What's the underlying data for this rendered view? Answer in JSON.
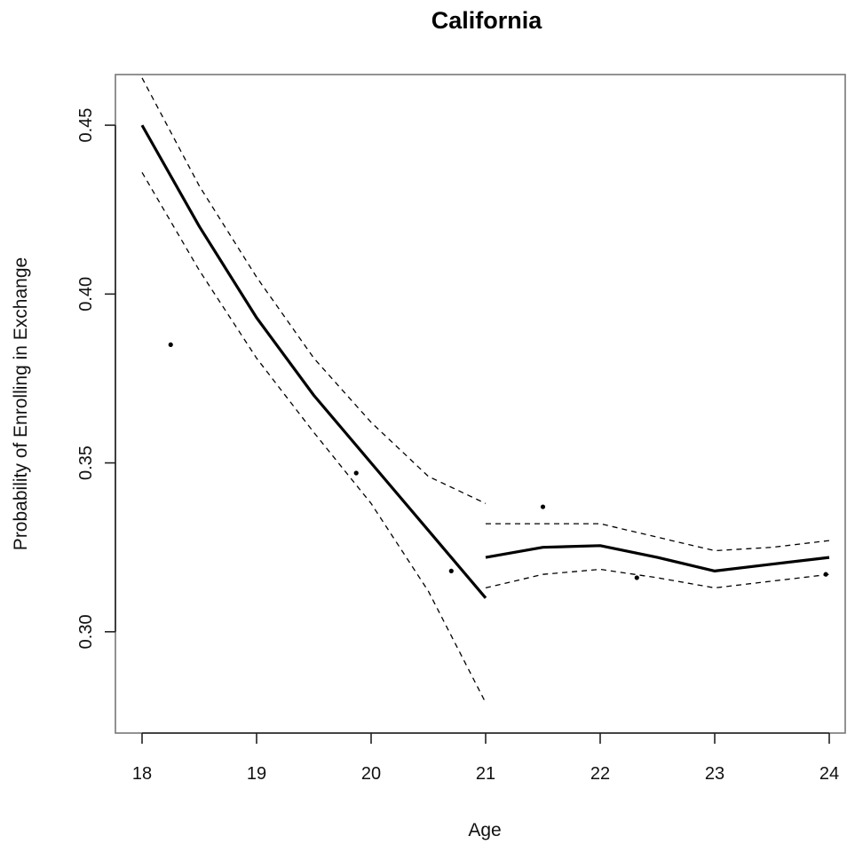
{
  "chart_data": {
    "type": "line",
    "title": "California",
    "xlabel": "Age",
    "ylabel": "Probability of Enrolling in Exchange",
    "xlim": [
      18,
      24
    ],
    "ylim": [
      0.27,
      0.465
    ],
    "x_ticks": [
      18,
      19,
      20,
      21,
      22,
      23,
      24
    ],
    "x_tick_labels": [
      "18",
      "19",
      "20",
      "21",
      "22",
      "23",
      "24"
    ],
    "y_ticks": [
      0.3,
      0.35,
      0.4,
      0.45
    ],
    "y_tick_labels": [
      "0.30",
      "0.35",
      "0.40",
      "0.45"
    ],
    "grid": false,
    "legend": "none",
    "series": [
      {
        "role": "fit",
        "segments": [
          {
            "x": [
              18,
              18.5,
              19,
              19.5,
              20,
              20.5,
              21
            ],
            "y": [
              0.45,
              0.42,
              0.393,
              0.37,
              0.35,
              0.33,
              0.31
            ]
          },
          {
            "x": [
              21,
              21.5,
              22,
              22.5,
              23,
              23.5,
              24
            ],
            "y": [
              0.322,
              0.325,
              0.3255,
              0.322,
              0.318,
              0.32,
              0.322
            ]
          }
        ]
      },
      {
        "role": "upper-ci",
        "segments": [
          {
            "x": [
              18,
              18.5,
              19,
              19.5,
              20,
              20.5,
              21
            ],
            "y": [
              0.464,
              0.432,
              0.405,
              0.381,
              0.362,
              0.346,
              0.338
            ]
          },
          {
            "x": [
              21,
              21.5,
              22,
              22.5,
              23,
              23.5,
              24
            ],
            "y": [
              0.332,
              0.332,
              0.332,
              0.328,
              0.324,
              0.325,
              0.327
            ]
          }
        ]
      },
      {
        "role": "lower-ci",
        "segments": [
          {
            "x": [
              18,
              18.5,
              19,
              19.5,
              20,
              20.5,
              21
            ],
            "y": [
              0.436,
              0.407,
              0.381,
              0.359,
              0.338,
              0.312,
              0.279
            ]
          },
          {
            "x": [
              21,
              21.5,
              22,
              22.5,
              23,
              23.5,
              24
            ],
            "y": [
              0.313,
              0.317,
              0.3185,
              0.316,
              0.313,
              0.315,
              0.317
            ]
          }
        ]
      }
    ],
    "points": {
      "x": [
        18.25,
        19.87,
        20.7,
        21.5,
        22.32,
        23.97
      ],
      "y": [
        0.385,
        0.347,
        0.318,
        0.337,
        0.316,
        0.317
      ]
    }
  }
}
